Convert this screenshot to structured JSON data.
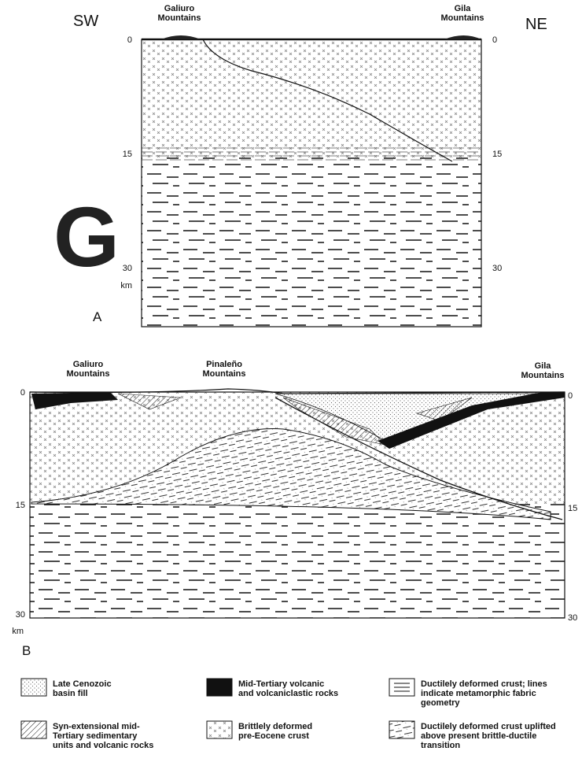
{
  "panel_a": {
    "letter": "A",
    "direction_left": "SW",
    "direction_right": "NE",
    "logo": "G",
    "mountains": [
      {
        "lines": [
          "Galiuro",
          "Mountains"
        ]
      },
      {
        "lines": [
          "Gila",
          "Mountains"
        ]
      }
    ],
    "depth_left": [
      "0",
      "15",
      "30"
    ],
    "depth_unit": "km",
    "depth_right": [
      "0",
      "15",
      "30"
    ]
  },
  "panel_b": {
    "letter": "B",
    "mountains": [
      {
        "lines": [
          "Galiuro",
          "Mountains"
        ]
      },
      {
        "lines": [
          "Pinaleño",
          "Mountains"
        ]
      },
      {
        "lines": [
          "Gila",
          "Mountains"
        ]
      }
    ],
    "depth_left": [
      "0",
      "15",
      "30"
    ],
    "depth_unit": "km",
    "depth_right": [
      "0",
      "15",
      "30"
    ]
  },
  "legend": [
    {
      "lines": [
        "Late Cenozoic",
        "basin fill"
      ]
    },
    {
      "lines": [
        "Mid-Tertiary volcanic",
        "and volcaniclastic rocks"
      ]
    },
    {
      "lines": [
        "Ductilely deformed crust; lines",
        "indicate metamorphic fabric",
        "geometry"
      ]
    },
    {
      "lines": [
        "Syn-extensional mid-",
        "Tertiary sedimentary",
        "units and volcanic rocks"
      ]
    },
    {
      "lines": [
        "Brittlely deformed",
        "pre-Eocene crust"
      ]
    },
    {
      "lines": [
        "Ductilely deformed crust uplifted",
        "above present brittle-ductile",
        "transition"
      ]
    }
  ]
}
